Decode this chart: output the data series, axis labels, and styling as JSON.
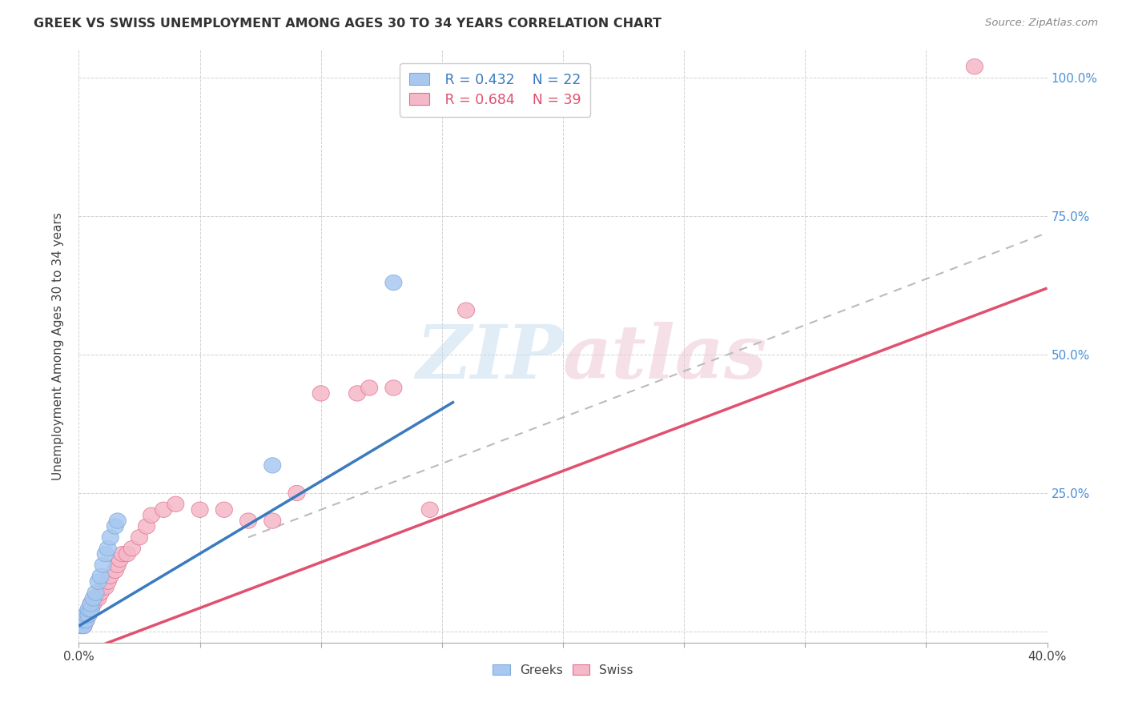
{
  "title": "GREEK VS SWISS UNEMPLOYMENT AMONG AGES 30 TO 34 YEARS CORRELATION CHART",
  "source": "Source: ZipAtlas.com",
  "ylabel": "Unemployment Among Ages 30 to 34 years",
  "xlim": [
    0.0,
    0.4
  ],
  "ylim": [
    -0.02,
    1.05
  ],
  "x_ticks": [
    0.0,
    0.05,
    0.1,
    0.15,
    0.2,
    0.25,
    0.3,
    0.35,
    0.4
  ],
  "x_tick_labels": [
    "0.0%",
    "",
    "",
    "",
    "",
    "",
    "",
    "",
    "40.0%"
  ],
  "y_ticks": [
    0.0,
    0.25,
    0.5,
    0.75,
    1.0
  ],
  "y_tick_labels": [
    "",
    "25.0%",
    "50.0%",
    "75.0%",
    "100.0%"
  ],
  "legend_R_blue": "R = 0.432",
  "legend_N_blue": "N = 22",
  "legend_R_pink": "R = 0.684",
  "legend_N_pink": "N = 39",
  "blue_color": "#a8c8f0",
  "blue_edge_color": "#7aaad8",
  "pink_color": "#f5b8c8",
  "pink_edge_color": "#e07090",
  "blue_line_color": "#3a7abf",
  "pink_line_color": "#e05070",
  "dashed_line_color": "#bbbbbb",
  "watermark": "ZIPatlas",
  "greek_x": [
    0.001,
    0.001,
    0.002,
    0.002,
    0.003,
    0.003,
    0.004,
    0.004,
    0.005,
    0.005,
    0.006,
    0.007,
    0.008,
    0.009,
    0.01,
    0.011,
    0.012,
    0.013,
    0.015,
    0.016,
    0.08,
    0.13
  ],
  "greek_y": [
    0.01,
    0.02,
    0.01,
    0.02,
    0.02,
    0.03,
    0.03,
    0.04,
    0.04,
    0.05,
    0.06,
    0.07,
    0.09,
    0.1,
    0.12,
    0.14,
    0.15,
    0.17,
    0.19,
    0.2,
    0.3,
    0.63
  ],
  "swiss_x": [
    0.001,
    0.002,
    0.002,
    0.003,
    0.003,
    0.004,
    0.005,
    0.005,
    0.006,
    0.007,
    0.008,
    0.009,
    0.01,
    0.011,
    0.012,
    0.013,
    0.015,
    0.016,
    0.017,
    0.018,
    0.02,
    0.022,
    0.025,
    0.028,
    0.03,
    0.035,
    0.04,
    0.05,
    0.06,
    0.07,
    0.08,
    0.09,
    0.1,
    0.115,
    0.12,
    0.13,
    0.145,
    0.16,
    0.37
  ],
  "swiss_y": [
    0.01,
    0.01,
    0.02,
    0.02,
    0.03,
    0.03,
    0.04,
    0.05,
    0.05,
    0.06,
    0.06,
    0.07,
    0.08,
    0.08,
    0.09,
    0.1,
    0.11,
    0.12,
    0.13,
    0.14,
    0.14,
    0.15,
    0.17,
    0.19,
    0.21,
    0.22,
    0.23,
    0.22,
    0.22,
    0.2,
    0.2,
    0.25,
    0.43,
    0.43,
    0.44,
    0.44,
    0.22,
    0.58,
    1.02
  ],
  "blue_trend_x": [
    0.0,
    0.155
  ],
  "blue_trend_y": [
    0.01,
    0.415
  ],
  "pink_trend_x": [
    0.0,
    0.4
  ],
  "pink_trend_y": [
    -0.04,
    0.62
  ],
  "dashed_trend_x": [
    0.07,
    0.4
  ],
  "dashed_trend_y": [
    0.17,
    0.72
  ]
}
